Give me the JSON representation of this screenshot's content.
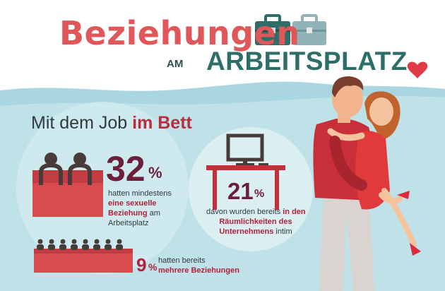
{
  "header": {
    "title_line1": "Beziehungen",
    "title_am": "AM",
    "title_line2": "ARBEITSPLATZ"
  },
  "section": {
    "title_plain": "Mit dem Job",
    "title_accent": "im Bett"
  },
  "stat1": {
    "number": "32",
    "unit": "%",
    "line1": "hatten mindestens",
    "line2_bold": "eine sexuelle",
    "line3_bold": "Beziehung",
    "line3_rest": " am",
    "line4": "Arbeitsplatz"
  },
  "stat2": {
    "number": "21",
    "unit": "%",
    "line1_plain": "davon wurden bereits ",
    "line1_bold": "in den",
    "line2_bold": "Räumlichkeiten des",
    "line3_bold": "Unternehmens",
    "line3_rest": " intim"
  },
  "stat3": {
    "number": "9",
    "unit": "%",
    "line1": "hatten bereits",
    "line2_bold": "mehrere Beziehungen"
  },
  "colors": {
    "accent_red": "#e0575a",
    "teal": "#2e6e68",
    "dark_wine": "#6b1f3a",
    "bg_blue": "#a9d6e0"
  }
}
